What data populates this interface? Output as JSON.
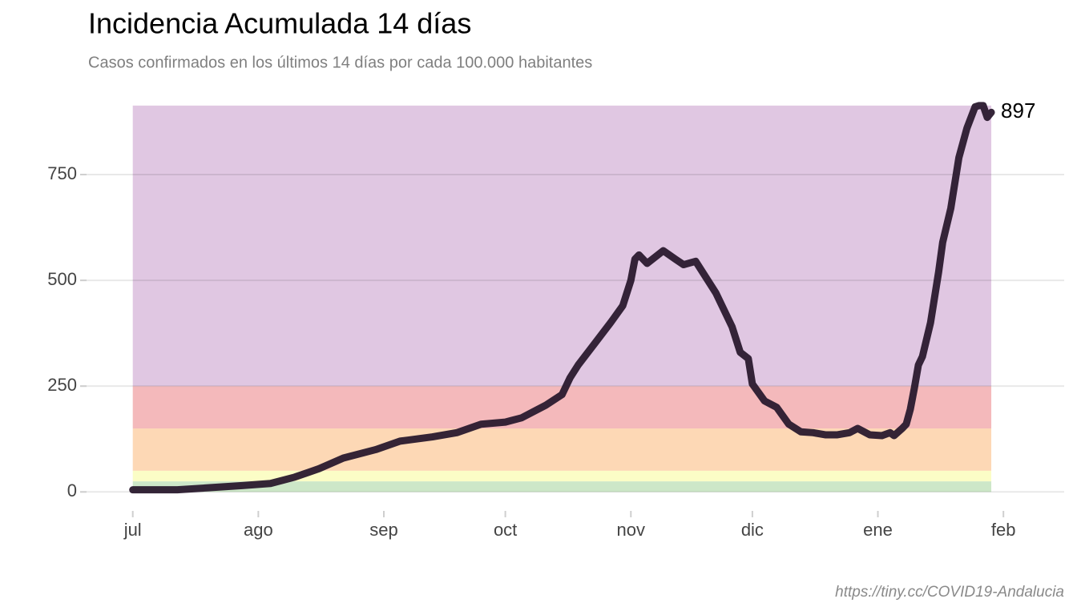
{
  "chart_data": {
    "type": "line",
    "title": "Incidencia Acumulada 14 días",
    "subtitle": "Casos confirmados en los últimos 14 días por cada 100.000 habitantes",
    "caption": "https://tiny.cc/COVID19-Andalucia",
    "x": [
      0,
      11,
      19,
      27,
      34,
      40,
      46,
      52,
      60,
      66,
      74,
      80,
      86,
      92,
      96,
      102,
      106,
      108,
      110,
      114,
      118,
      121,
      123,
      124,
      125,
      127,
      131,
      134,
      136,
      139,
      142,
      144,
      146,
      148,
      150,
      152,
      153,
      156,
      159,
      162,
      165,
      168,
      171,
      174,
      177,
      179,
      182,
      185,
      187,
      188,
      190,
      191,
      192,
      193,
      194,
      195,
      197,
      199,
      200,
      201,
      202,
      204,
      206,
      208,
      209,
      210,
      211,
      212
    ],
    "series": [
      {
        "color": "#2a1a2e",
        "values": [
          5,
          5,
          10,
          15,
          20,
          35,
          55,
          80,
          100,
          120,
          130,
          140,
          160,
          165,
          175,
          205,
          230,
          270,
          300,
          350,
          400,
          440,
          500,
          550,
          560,
          540,
          570,
          550,
          537,
          545,
          500,
          470,
          430,
          390,
          330,
          315,
          255,
          215,
          200,
          160,
          142,
          140,
          135,
          135,
          140,
          150,
          135,
          133,
          140,
          133,
          150,
          160,
          195,
          245,
          300,
          320,
          400,
          520,
          590,
          630,
          670,
          790,
          860,
          910,
          913,
          913,
          885,
          897
        ]
      }
    ],
    "bands": [
      {
        "from": 0,
        "to": 25,
        "color": "#cde7c8"
      },
      {
        "from": 25,
        "to": 50,
        "color": "#fbfdc6"
      },
      {
        "from": 50,
        "to": 150,
        "color": "#fdd8b5"
      },
      {
        "from": 150,
        "to": 250,
        "color": "#f4b9bb"
      },
      {
        "from": 250,
        "to": 913,
        "color": "#e0c7e2"
      }
    ],
    "xlim": [
      -13,
      230
    ],
    "xticks": [
      {
        "value": 0,
        "label": "jul"
      },
      {
        "value": 31,
        "label": "ago"
      },
      {
        "value": 62,
        "label": "sep"
      },
      {
        "value": 92,
        "label": "oct"
      },
      {
        "value": 123,
        "label": "nov"
      },
      {
        "value": 153,
        "label": "dic"
      },
      {
        "value": 184,
        "label": "ene"
      },
      {
        "value": 215,
        "label": "feb"
      }
    ],
    "ylim": [
      -60,
      960
    ],
    "yticks": [
      0,
      250,
      500,
      750
    ],
    "grid": true
  }
}
